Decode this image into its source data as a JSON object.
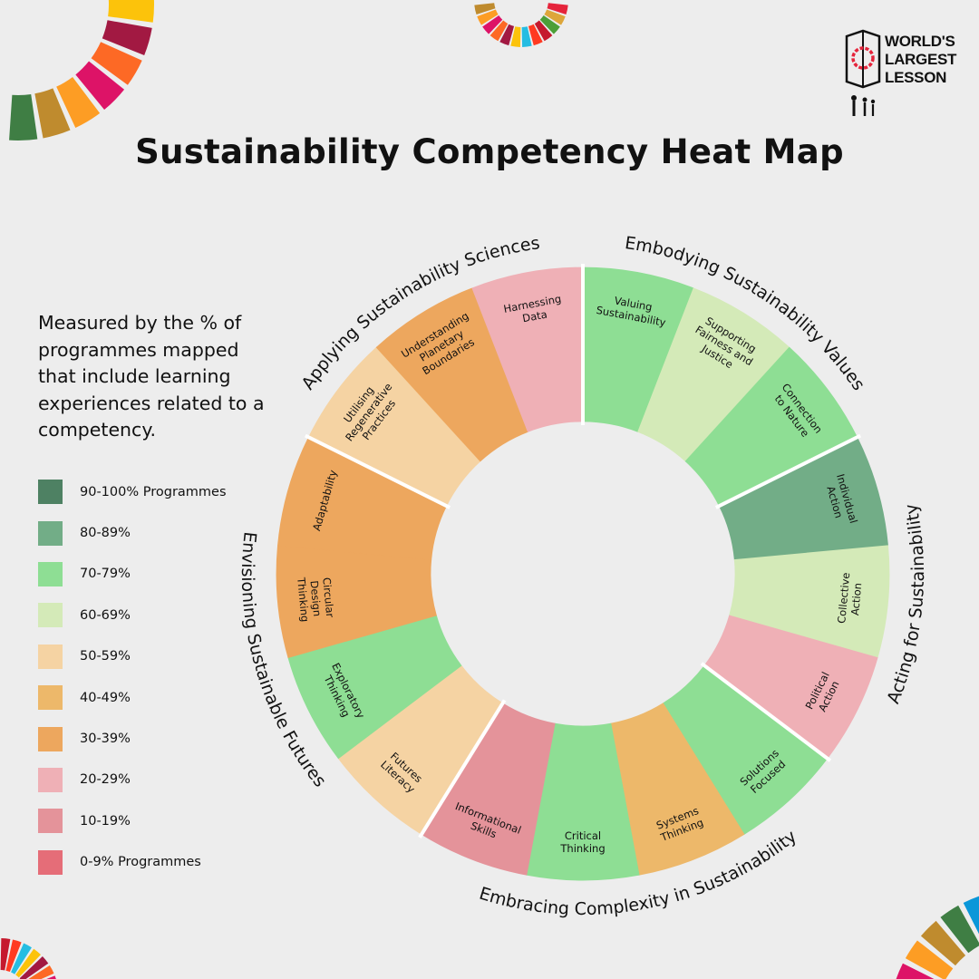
{
  "title": "Sustainability Competency Heat Map",
  "description": "Measured by the % of programmes mapped that include learning experiences related to a competency.",
  "logo": {
    "lines": [
      "WORLD'S",
      "LARGEST",
      "LESSON"
    ]
  },
  "legend": [
    {
      "label": "90-100% Programmes",
      "color": "#4e8163"
    },
    {
      "label": "80-89%",
      "color": "#72ad87"
    },
    {
      "label": "70-79%",
      "color": "#8ede94"
    },
    {
      "label": "60-69%",
      "color": "#d4eab8"
    },
    {
      "label": "50-59%",
      "color": "#f5d3a3"
    },
    {
      "label": "40-49%",
      "color": "#edb86a"
    },
    {
      "label": "30-39%",
      "color": "#eda75e"
    },
    {
      "label": "20-29%",
      "color": "#efb0b6"
    },
    {
      "label": "10-19%",
      "color": "#e4939a"
    },
    {
      "label": "0-9% Programmes",
      "color": "#e56d78"
    }
  ],
  "chart_data": {
    "type": "donut-heatmap",
    "title": "Sustainability Competency Heat Map",
    "bins": [
      "90-100%",
      "80-89%",
      "70-79%",
      "60-69%",
      "50-59%",
      "40-49%",
      "30-39%",
      "20-29%",
      "10-19%",
      "0-9%"
    ],
    "categories": [
      {
        "name": "Embodying Sustainability Values",
        "competencies": [
          {
            "name": "Valuing Sustainability",
            "bin": "70-79%",
            "color": "#8ede94"
          },
          {
            "name": "Supporting Fairness and Justice",
            "bin": "60-69%",
            "color": "#d4eab8"
          },
          {
            "name": "Connection to Nature",
            "bin": "70-79%",
            "color": "#8ede94"
          }
        ]
      },
      {
        "name": "Acting for Sustainability",
        "competencies": [
          {
            "name": "Individual Action",
            "bin": "80-89%",
            "color": "#72ad87"
          },
          {
            "name": "Collective Action",
            "bin": "60-69%",
            "color": "#d4eab8"
          },
          {
            "name": "Political Action",
            "bin": "20-29%",
            "color": "#efb0b6"
          }
        ]
      },
      {
        "name": "Embracing Complexity in Sustainability",
        "competencies": [
          {
            "name": "Solutions Focused",
            "bin": "70-79%",
            "color": "#8ede94"
          },
          {
            "name": "Systems Thinking",
            "bin": "40-49%",
            "color": "#edb86a"
          },
          {
            "name": "Critical Thinking",
            "bin": "70-79%",
            "color": "#8ede94"
          },
          {
            "name": "Informational Skills",
            "bin": "10-19%",
            "color": "#e4939a"
          }
        ]
      },
      {
        "name": "Envisioning Sustainable Futures",
        "competencies": [
          {
            "name": "Futures Literacy",
            "bin": "50-59%",
            "color": "#f5d3a3"
          },
          {
            "name": "Exploratory Thinking",
            "bin": "70-79%",
            "color": "#8ede94"
          },
          {
            "name": "Circular Design Thinking",
            "bin": "30-39%",
            "color": "#eda75e"
          },
          {
            "name": "Adaptability",
            "bin": "30-39%",
            "color": "#eda75e"
          }
        ]
      },
      {
        "name": "Applying Sustainability Sciences",
        "competencies": [
          {
            "name": "Utilising Regenerative Practices",
            "bin": "50-59%",
            "color": "#f5d3a3"
          },
          {
            "name": "Understanding Planetary Boundaries",
            "bin": "30-39%",
            "color": "#eda75e"
          },
          {
            "name": "Harnessing Data",
            "bin": "20-29%",
            "color": "#efb0b6"
          }
        ]
      }
    ]
  },
  "sdg_colors": [
    "#e5243b",
    "#dda63a",
    "#4c9f38",
    "#c5192d",
    "#ff3a21",
    "#26bde2",
    "#fcc30b",
    "#a21942",
    "#fd6925",
    "#dd1367",
    "#fd9d24",
    "#bf8b2e",
    "#3f7e44",
    "#0a97d9",
    "#56c02b",
    "#00689d",
    "#19486a"
  ]
}
